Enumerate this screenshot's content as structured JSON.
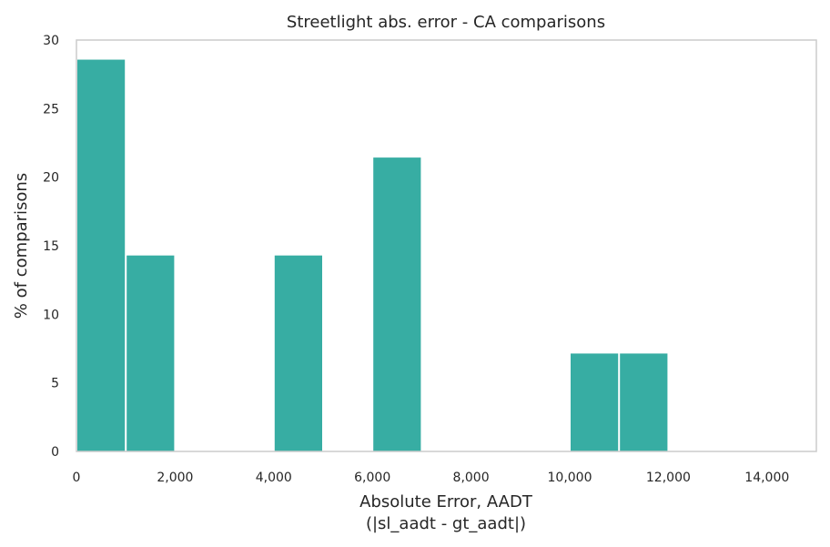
{
  "chart_data": {
    "type": "bar",
    "title": "Streetlight abs. error - CA comparisons",
    "xlabel_line1": "Absolute Error, AADT",
    "xlabel_line2": "(|sl_aadt - gt_aadt|)",
    "ylabel": "% of comparisons",
    "xlim": [
      0,
      15000
    ],
    "ylim": [
      0,
      30
    ],
    "x_ticks": [
      0,
      2000,
      4000,
      6000,
      8000,
      10000,
      12000,
      14000
    ],
    "x_tick_labels": [
      "0",
      "2,000",
      "4,000",
      "6,000",
      "8,000",
      "10,000",
      "12,000",
      "14,000"
    ],
    "y_ticks": [
      0,
      5,
      10,
      15,
      20,
      25,
      30
    ],
    "y_tick_labels": [
      "0",
      "5",
      "10",
      "15",
      "20",
      "25",
      "30"
    ],
    "bin_width": 1000,
    "bins": [
      {
        "start": 0,
        "end": 1000,
        "value": 28.57
      },
      {
        "start": 1000,
        "end": 2000,
        "value": 14.29
      },
      {
        "start": 2000,
        "end": 3000,
        "value": 0
      },
      {
        "start": 3000,
        "end": 4000,
        "value": 0
      },
      {
        "start": 4000,
        "end": 5000,
        "value": 14.29
      },
      {
        "start": 5000,
        "end": 6000,
        "value": 0
      },
      {
        "start": 6000,
        "end": 7000,
        "value": 21.43
      },
      {
        "start": 7000,
        "end": 8000,
        "value": 0
      },
      {
        "start": 8000,
        "end": 9000,
        "value": 0
      },
      {
        "start": 9000,
        "end": 10000,
        "value": 0
      },
      {
        "start": 10000,
        "end": 11000,
        "value": 7.14
      },
      {
        "start": 11000,
        "end": 12000,
        "value": 7.14
      }
    ],
    "bar_color": "#37ada3",
    "grid": false,
    "legend": "none"
  }
}
